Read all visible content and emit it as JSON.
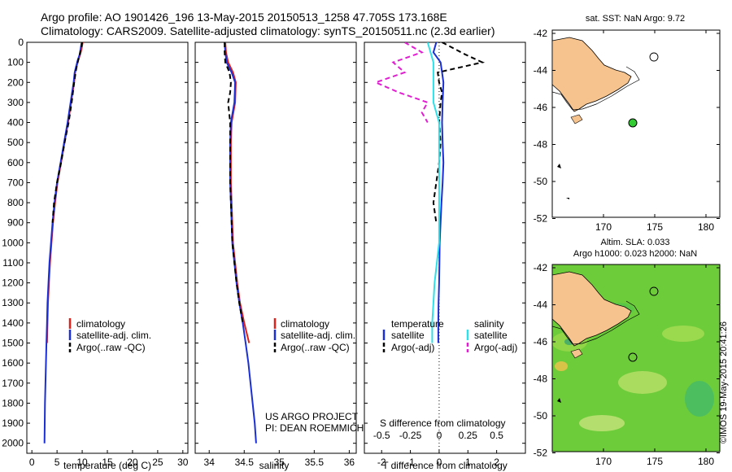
{
  "header": {
    "title_line1": "Argo profile: AO 1901426_196 13-May-2015 20150513_1258 47.705S 173.168E",
    "title_line2": "Climatology: CARS2009. Satellite-adjusted climatology: synTS_20150511.nc (2.3d earlier)"
  },
  "colors": {
    "climatology": "#e0201a",
    "satellite": "#1a2fd6",
    "argo": "#000000",
    "sat_salinity": "#2ee0e8",
    "argo_salinity": "#e020d0",
    "land": "#f6c38e",
    "argo_marker": "#33cc33",
    "sla_field": "#6dcc3a"
  },
  "chart_data": [
    {
      "type": "line",
      "id": "temperature",
      "xlabel": "temperature (deg C)",
      "ylabel": "",
      "xlim": [
        -1,
        31
      ],
      "ylim": [
        2050,
        0
      ],
      "xticks": [
        0,
        5,
        10,
        15,
        20,
        25,
        30
      ],
      "yticks": [
        0,
        100,
        200,
        300,
        400,
        500,
        600,
        700,
        800,
        900,
        1000,
        1100,
        1200,
        1300,
        1400,
        1500,
        1600,
        1700,
        1800,
        1900,
        2000
      ],
      "legend": [
        "climatology",
        "satellite-adj. clim.",
        "Argo(..raw -QC)"
      ],
      "series": [
        {
          "name": "climatology",
          "depth": [
            0,
            30,
            60,
            90,
            120,
            150,
            200,
            300,
            400,
            500,
            600,
            700,
            800,
            900,
            1000,
            1100,
            1200,
            1300,
            1400,
            1500
          ],
          "values": [
            10.1,
            9.9,
            9.6,
            9.2,
            8.9,
            8.6,
            8.4,
            7.8,
            7.2,
            6.5,
            5.8,
            5.1,
            4.6,
            4.2,
            3.9,
            3.6,
            3.4,
            3.2,
            3.1,
            3.0
          ]
        },
        {
          "name": "satellite-adj. clim.",
          "depth": [
            0,
            30,
            60,
            90,
            120,
            150,
            200,
            300,
            400,
            500,
            600,
            700,
            800,
            900,
            1000,
            1100,
            1200,
            1300,
            1400,
            1500,
            1600,
            1700,
            1800,
            1900,
            2000
          ],
          "values": [
            9.9,
            9.7,
            9.5,
            9.1,
            8.8,
            8.5,
            8.3,
            7.7,
            7.1,
            6.4,
            5.7,
            5.0,
            4.5,
            4.1,
            3.8,
            3.5,
            3.3,
            3.1,
            3.0,
            2.9,
            2.8,
            2.7,
            2.6,
            2.55,
            2.5
          ]
        },
        {
          "name": "Argo(..raw -QC)",
          "depth": [
            0,
            30,
            60,
            90,
            120,
            150,
            200,
            300,
            400,
            500,
            600,
            700,
            800,
            900
          ],
          "values": [
            10.0,
            9.8,
            9.5,
            9.2,
            8.9,
            8.7,
            8.4,
            7.9,
            7.3,
            6.5,
            5.8,
            5.0,
            4.4,
            4.1
          ]
        }
      ]
    },
    {
      "type": "line",
      "id": "salinity",
      "xlabel": "salinity",
      "ylabel": "",
      "xlim": [
        33.8,
        36.1
      ],
      "ylim": [
        2050,
        0
      ],
      "xticks": [
        34,
        34.5,
        35,
        35.5,
        36
      ],
      "legend": [
        "climatology",
        "satellite-adj. clim.",
        "Argo(..raw -QC)"
      ],
      "series": [
        {
          "name": "climatology",
          "depth": [
            0,
            50,
            100,
            150,
            200,
            300,
            400,
            500,
            600,
            700,
            800,
            900,
            1000,
            1100,
            1200,
            1300,
            1400,
            1500
          ],
          "values": [
            34.23,
            34.24,
            34.27,
            34.34,
            34.38,
            34.37,
            34.32,
            34.31,
            34.31,
            34.31,
            34.32,
            34.33,
            34.34,
            34.37,
            34.4,
            34.44,
            34.5,
            34.57
          ]
        },
        {
          "name": "satellite-adj. clim.",
          "depth": [
            0,
            50,
            100,
            150,
            200,
            300,
            400,
            500,
            600,
            700,
            800,
            900,
            1000,
            1100,
            1200,
            1300,
            1400,
            1500,
            1600,
            1700,
            1800,
            1900,
            2000
          ],
          "values": [
            34.22,
            34.23,
            34.25,
            34.32,
            34.37,
            34.36,
            34.31,
            34.3,
            34.3,
            34.3,
            34.31,
            34.32,
            34.33,
            34.36,
            34.39,
            34.43,
            34.48,
            34.52,
            34.56,
            34.59,
            34.62,
            34.65,
            34.67
          ]
        },
        {
          "name": "Argo(..raw -QC)",
          "depth": [
            0,
            50,
            100,
            150,
            200,
            250,
            300,
            400,
            500,
            600,
            700,
            800,
            900,
            1000,
            1100,
            1200,
            1300,
            1400
          ],
          "values": [
            34.22,
            34.22,
            34.23,
            34.29,
            34.31,
            34.3,
            34.27,
            34.3,
            34.3,
            34.3,
            34.3,
            34.31,
            34.32,
            34.33,
            34.36,
            34.39,
            34.43,
            34.48
          ]
        }
      ]
    },
    {
      "type": "line",
      "id": "difference",
      "xlabel": "T difference from climatology",
      "top_xlabel": "S difference from climatology",
      "xlim": [
        -2.6,
        3.0
      ],
      "ylim": [
        2050,
        0
      ],
      "xticks": [
        -2,
        -1,
        0,
        1,
        2
      ],
      "xticklabels": [
        "-2",
        "-1",
        "0",
        "1",
        "2"
      ],
      "top_ticklabels": [
        "-0.5",
        "-0.25",
        "0",
        "0.25",
        "0.5"
      ],
      "legend_headers": [
        "temperature",
        "salinity"
      ],
      "legend": [
        "satellite",
        "Argo(-adj)",
        "satellite",
        "Argo(-adj)"
      ],
      "series": [
        {
          "name": "temperature satellite",
          "depth": [
            0,
            50,
            100,
            150,
            200,
            300,
            400,
            500,
            600,
            700,
            800,
            900,
            1000,
            1100,
            1200,
            1300,
            1400,
            1500
          ],
          "values": [
            -0.1,
            -0.2,
            0.05,
            0.1,
            0.15,
            0.12,
            0.1,
            0.12,
            0.15,
            0.12,
            0.08,
            0.05,
            0.02,
            0.01,
            0.0,
            -0.02,
            -0.03,
            -0.03
          ]
        },
        {
          "name": "temperature Argo(-adj)",
          "depth": [
            0,
            30,
            60,
            100,
            150,
            200,
            250,
            300,
            400,
            500,
            600,
            700,
            800,
            900
          ],
          "values": [
            0.1,
            0.5,
            0.9,
            1.5,
            -0.05,
            0.0,
            0.1,
            0.05,
            0.0,
            0.05,
            0.0,
            -0.1,
            -0.2,
            -0.1
          ]
        },
        {
          "name": "salinity satellite",
          "depth": [
            0,
            100,
            200,
            300,
            400,
            500,
            600,
            700,
            800,
            900,
            1000,
            1100,
            1200,
            1300,
            1400,
            1500
          ],
          "values": [
            -0.1,
            -0.05,
            -0.05,
            -0.05,
            0.0,
            0.0,
            0.0,
            0.0,
            0.0,
            0.0,
            0.0,
            -0.02,
            -0.04,
            -0.05,
            -0.06,
            -0.06
          ]
        },
        {
          "name": "salinity Argo(-adj)",
          "depth": [
            0,
            50,
            100,
            150,
            200,
            250,
            300,
            350,
            400
          ],
          "values": [
            -0.3,
            -0.15,
            -0.4,
            -0.3,
            -0.55,
            -0.35,
            -0.1,
            -0.15,
            -0.1
          ]
        }
      ]
    }
  ],
  "annotations": {
    "project_line1": "US ARGO PROJECT",
    "project_line2": "PI: DEAN ROEMMICH",
    "credit": "©IMOS 19-May-2015 20:41:26"
  },
  "maps": {
    "top": {
      "title": "sat. SST: NaN Argo: 9.72",
      "yticks": [
        "-42",
        "-44",
        "-46",
        "-48",
        "-50",
        "-52"
      ],
      "xticks": [
        "170",
        "175",
        "180"
      ]
    },
    "bottom": {
      "title_line1": "Altim. SLA: 0.033",
      "title_line2": "Argo h1000: 0.023 h2000: NaN",
      "yticks": [
        "-42",
        "-44",
        "-46",
        "-48",
        "-50",
        "-52"
      ],
      "xticks": [
        "170",
        "175",
        "180"
      ]
    }
  }
}
